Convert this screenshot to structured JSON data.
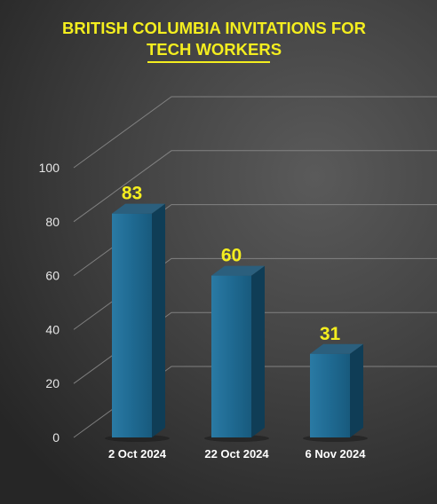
{
  "title_line1": "BRITISH COLUMBIA INVITATIONS FOR",
  "title_line2": "TECH WORKERS",
  "colors": {
    "title": "#f4ee1f",
    "value_label": "#f4ee1f",
    "bar_front": "#1f6a92",
    "bar_side": "#0f3d56",
    "bar_top": "#2b5f7d",
    "grid": "#8c8c8c",
    "tick_label": "#e6e6e6"
  },
  "chart_data": {
    "type": "bar",
    "title": "BRITISH COLUMBIA INVITATIONS FOR TECH WORKERS",
    "categories": [
      "2 Oct 2024",
      "22 Oct 2024",
      "6 Nov 2024"
    ],
    "values": [
      83,
      60,
      31
    ],
    "ylim": [
      0,
      100
    ],
    "yticks": [
      "0",
      "20",
      "40",
      "60",
      "80",
      "100"
    ],
    "value_labels": [
      "83",
      "60",
      "31"
    ],
    "xlabel": "",
    "ylabel": "",
    "grid": true,
    "legend": false,
    "style": "3d-columns"
  }
}
